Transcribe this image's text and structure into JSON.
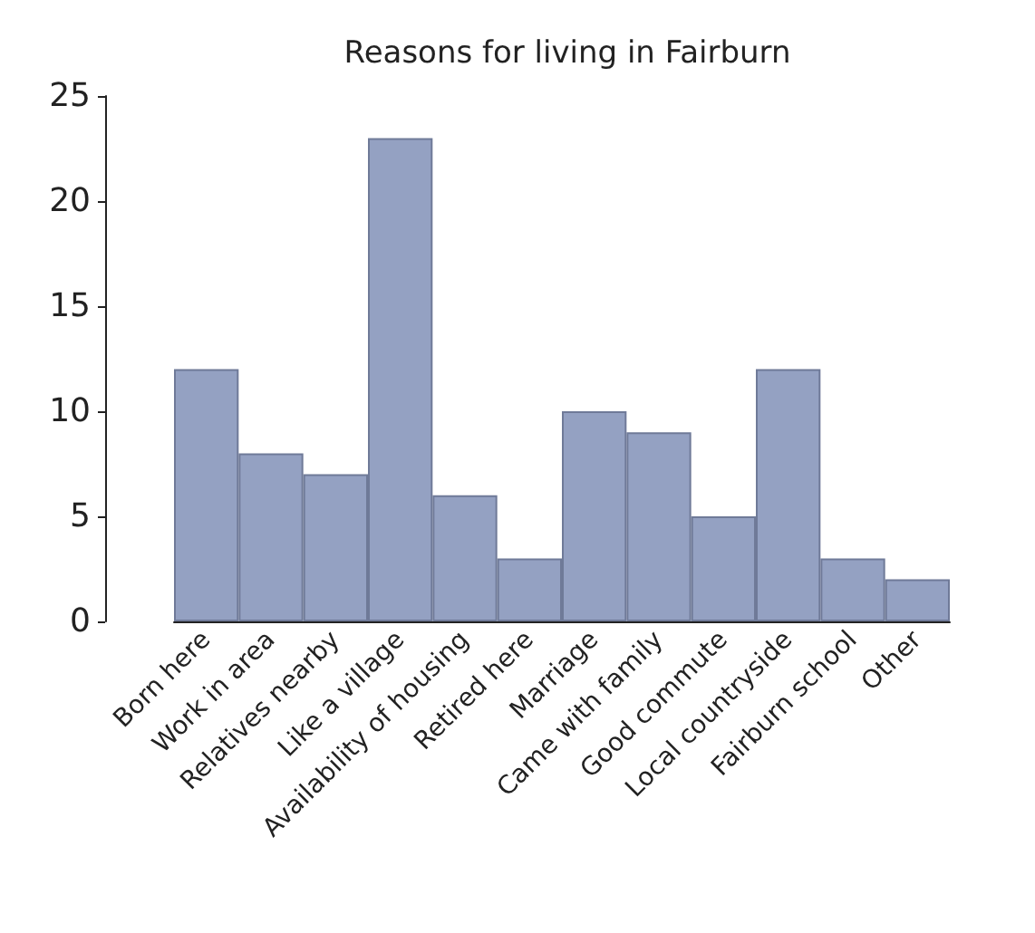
{
  "chart_data": {
    "type": "bar",
    "title": "Reasons for living in Fairburn",
    "categories": [
      "Born here",
      "Work in area",
      "Relatives nearby",
      "Like a village",
      "Availability of housing",
      "Retired here",
      "Marriage",
      "Came with family",
      "Good commute",
      "Local countryside",
      "Fairburn school",
      "Other"
    ],
    "values": [
      12,
      8,
      7,
      23,
      6,
      3,
      10,
      9,
      5,
      12,
      3,
      2
    ],
    "color": "#94a1c2",
    "ylim": [
      0,
      25
    ],
    "yticks": [
      0,
      5,
      10,
      15,
      20,
      25
    ],
    "grid": false
  }
}
